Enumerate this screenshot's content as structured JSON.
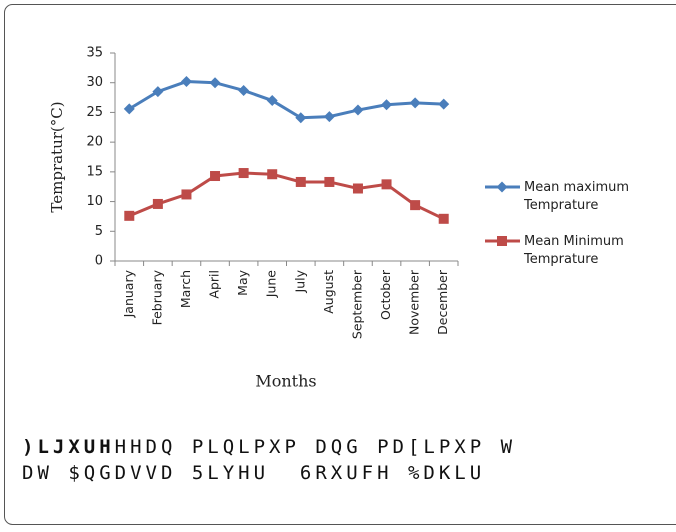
{
  "chart_data": {
    "type": "line",
    "x_label": "Months",
    "y_label": "Tempratur(°C)",
    "categories": [
      "January",
      "February",
      "March",
      "April",
      "May",
      "June",
      "July",
      "August",
      "September",
      "October",
      "November",
      "December"
    ],
    "series": [
      {
        "name": "Mean maximum Temprature",
        "color": "#4a7ebb",
        "marker": "diamond",
        "values": [
          25.6,
          28.5,
          30.2,
          30.0,
          28.7,
          27.0,
          24.1,
          24.3,
          25.4,
          26.3,
          26.6,
          26.4
        ]
      },
      {
        "name": "Mean Minimum Temprature",
        "color": "#be4b48",
        "marker": "square",
        "values": [
          7.6,
          9.6,
          11.2,
          14.3,
          14.8,
          14.6,
          13.3,
          13.3,
          12.2,
          12.9,
          9.4,
          7.1
        ]
      }
    ],
    "ylim": [
      0,
      35
    ],
    "yticks": [
      0,
      5,
      10,
      15,
      20,
      25,
      30,
      35
    ],
    "legend": "right"
  },
  "caption": {
    "label": ")LJXUH",
    "line1": "HHDQ PLQLPXP DQG PD[LPXP W",
    "line2": "DW $QGDVVD 5LYHU  6RXUFH %DKLU"
  }
}
